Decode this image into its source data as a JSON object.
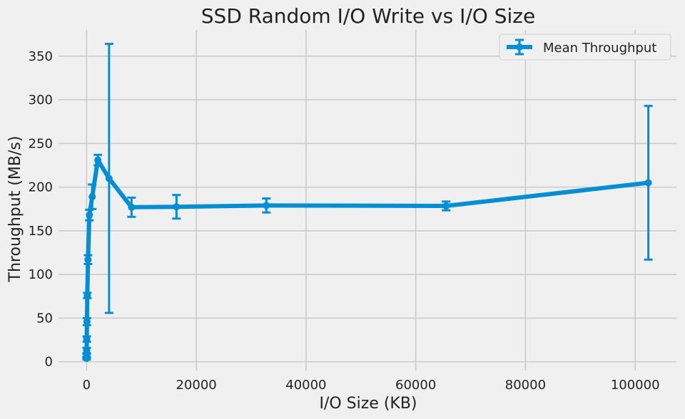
{
  "chart_data": {
    "type": "line",
    "title": "SSD Random I/O Write vs I/O Size",
    "xlabel": "I/O Size (KB)",
    "ylabel": "Throughput (MB/s)",
    "xlim": [
      -5120,
      107520
    ],
    "ylim": [
      -10,
      380
    ],
    "xticks": [
      0,
      20000,
      40000,
      60000,
      80000,
      100000
    ],
    "yticks": [
      0,
      50,
      100,
      150,
      200,
      250,
      300,
      350
    ],
    "grid": true,
    "legend_position": "top-right",
    "colors": {
      "series": "#008fd5",
      "background": "#f0f0f0",
      "grid": "#cbcbcb"
    },
    "series": [
      {
        "name": "Mean Throughput",
        "x": [
          4,
          8,
          16,
          32,
          64,
          128,
          256,
          512,
          1024,
          2048,
          4096,
          8192,
          16384,
          32768,
          65536,
          102400
        ],
        "y": [
          4,
          7,
          13,
          26,
          46,
          76,
          117,
          168,
          189,
          231,
          210,
          177,
          177.5,
          179,
          178.5,
          205
        ],
        "err": [
          1.5,
          2,
          3,
          3,
          4,
          3,
          5,
          6,
          14,
          6,
          154,
          11,
          13.5,
          8,
          5,
          88
        ]
      }
    ]
  }
}
